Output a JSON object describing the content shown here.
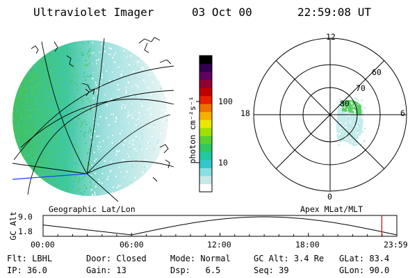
{
  "header": {
    "instrument": "Ultraviolet Imager",
    "date": "03 Oct 00",
    "time": "22:59:08 UT"
  },
  "colorbar": {
    "unit_label": "photon cm⁻²s⁻¹",
    "ticks": [
      {
        "label": "100",
        "value": 100
      },
      {
        "label": "10",
        "value": 10
      }
    ],
    "colors": [
      "#ffffff",
      "#c8e8e8",
      "#88e0e0",
      "#30c8c8",
      "#20c8a0",
      "#30c860",
      "#58d030",
      "#a0e000",
      "#e8e800",
      "#f8b000",
      "#f07000",
      "#e82000",
      "#c00000",
      "#900030",
      "#600060",
      "#300050",
      "#000000"
    ]
  },
  "geo_map": {
    "caption": "Geographic Lat/Lon"
  },
  "polar_plot": {
    "caption": "Apex MLat/MLT",
    "mlt_labels": {
      "top": "12",
      "bottom": "0",
      "left": "18",
      "right": "6"
    },
    "mlat_labels": [
      "60",
      "70",
      "80"
    ]
  },
  "altitude_plot": {
    "ylabel": "GC Alt",
    "yticks": [
      "9.0",
      "1.8"
    ],
    "xticks": [
      "00:00",
      "06:00",
      "12:00",
      "18:00",
      "23:59"
    ],
    "current_marker_hours": 22.98,
    "marker_color": "#e00000"
  },
  "status": {
    "rows": [
      [
        {
          "key": "Flt:",
          "value": "LBHL"
        },
        {
          "key": "Door:",
          "value": "Closed"
        },
        {
          "key": "Mode:",
          "value": "Normal"
        },
        {
          "key": "GC Alt:",
          "value": "3.4 Re"
        },
        {
          "key": "GLat:",
          "value": "83.4"
        }
      ],
      [
        {
          "key": "IP:",
          "value": "36.0"
        },
        {
          "key": "Gain:",
          "value": "13"
        },
        {
          "key": "Dsp:",
          "value": "6.5"
        },
        {
          "key": "Seq:",
          "value": "39"
        },
        {
          "key": "GLon:",
          "value": "90.0"
        }
      ]
    ]
  }
}
